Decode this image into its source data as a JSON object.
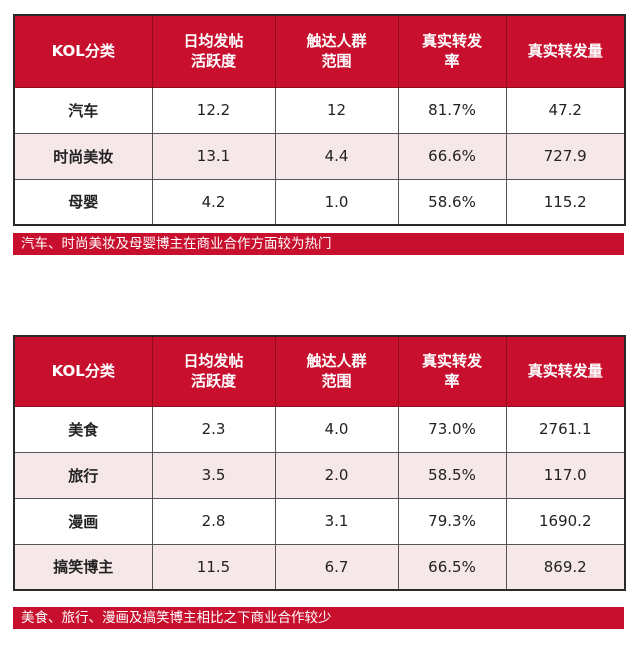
{
  "headers": {
    "category": "KOL分类",
    "activity_line1": "日均发帖",
    "activity_line2": "活跃度",
    "reach_line1": "触达人群",
    "reach_line2": "范围",
    "repost_rate_line1": "真实转发",
    "repost_rate_line2": "率",
    "repost_volume": "真实转发量"
  },
  "table1": {
    "rows": [
      {
        "category": "汽车",
        "activity": "12.2",
        "reach": "12",
        "repost_rate": "81.7%",
        "repost_volume": "47.2"
      },
      {
        "category": "时尚美妆",
        "activity": "13.1",
        "reach": "4.4",
        "repost_rate": "66.6%",
        "repost_volume": "727.9"
      },
      {
        "category": "母婴",
        "activity": "4.2",
        "reach": "1.0",
        "repost_rate": "58.6%",
        "repost_volume": "115.2"
      }
    ],
    "caption": "汽车、时尚美妆及母婴博主在商业合作方面较为热门"
  },
  "table2": {
    "rows": [
      {
        "category": "美食",
        "activity": "2.3",
        "reach": "4.0",
        "repost_rate": "73.0%",
        "repost_volume": "2761.1"
      },
      {
        "category": "旅行",
        "activity": "3.5",
        "reach": "2.0",
        "repost_rate": "58.5%",
        "repost_volume": "117.0"
      },
      {
        "category": "漫画",
        "activity": "2.8",
        "reach": "3.1",
        "repost_rate": "79.3%",
        "repost_volume": "1690.2"
      },
      {
        "category": "搞笑博主",
        "activity": "11.5",
        "reach": "6.7",
        "repost_rate": "66.5%",
        "repost_volume": "869.2"
      }
    ],
    "caption": "美食、旅行、漫画及搞笑博主相比之下商业合作较少"
  },
  "colors": {
    "header_red": "#c8102e",
    "alt_row_pink": "#f6e7e9",
    "border": "#555555"
  }
}
